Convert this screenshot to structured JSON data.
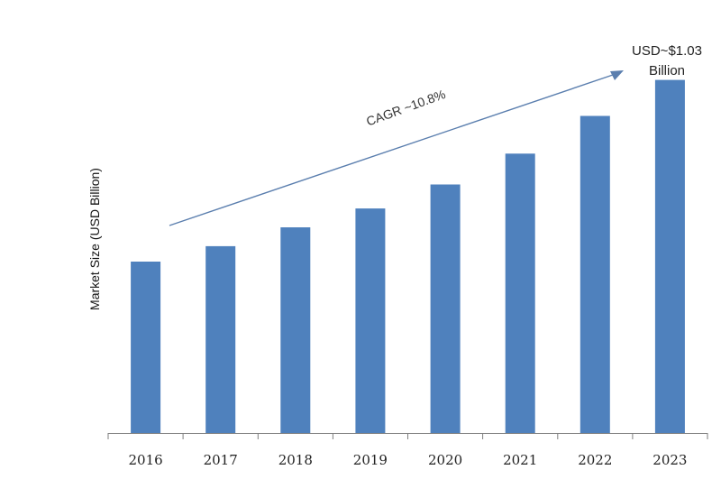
{
  "chart_data": {
    "type": "bar",
    "categories": [
      "2016",
      "2017",
      "2018",
      "2019",
      "2020",
      "2021",
      "2022",
      "2023"
    ],
    "values": [
      0.5,
      0.545,
      0.6,
      0.655,
      0.725,
      0.815,
      0.925,
      1.03
    ],
    "ylabel": "Market Size (USD Billion)",
    "ylim": [
      0,
      1.1
    ],
    "grid": false,
    "annotations": {
      "cagr": "CAGR ~10.8%",
      "final_value_line1": "USD~$1.03",
      "final_value_line2": "Billion"
    }
  },
  "colors": {
    "bar": "#4f81bd",
    "arrow": "#5a7eae",
    "axis": "#7f7f7f"
  }
}
